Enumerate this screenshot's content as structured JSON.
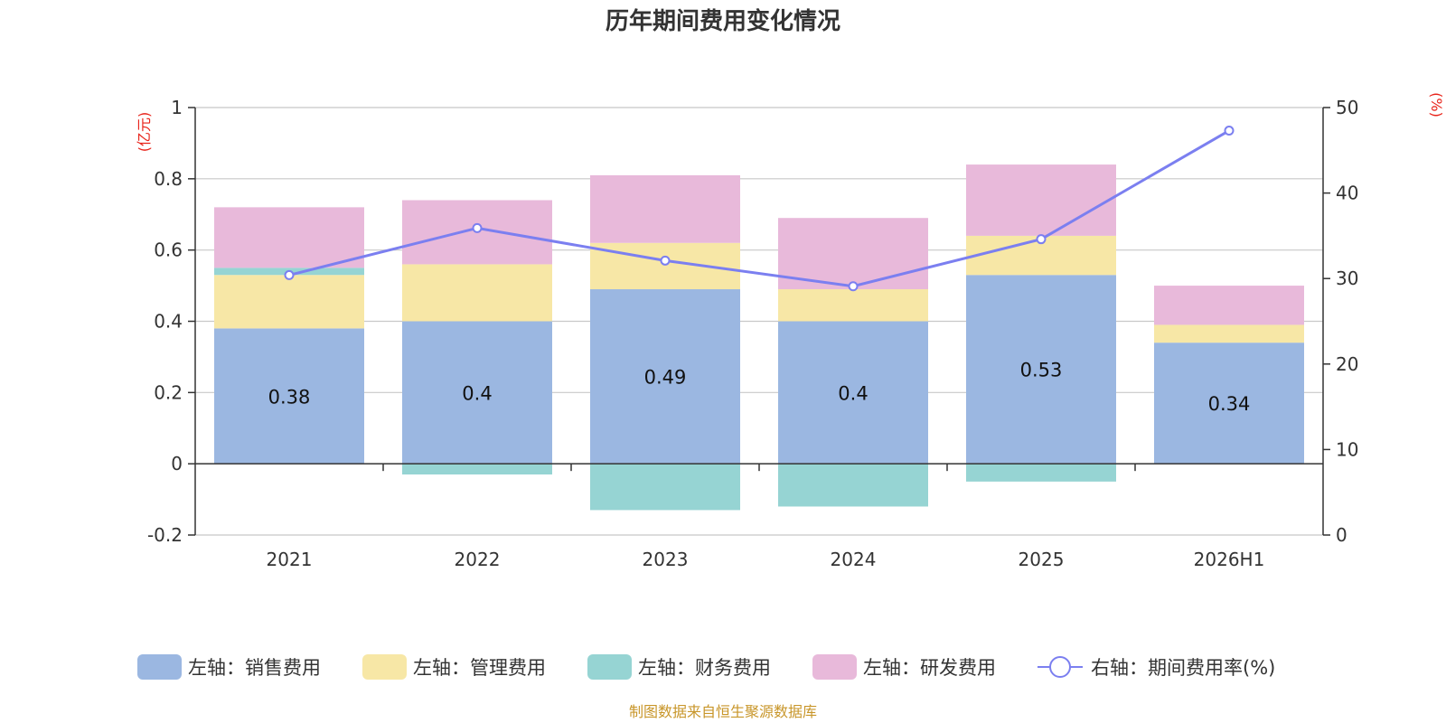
{
  "chart_data": {
    "type": "bar",
    "title": "历年期间费用变化情况",
    "categories": [
      "2021",
      "2022",
      "2023",
      "2024",
      "2025",
      "2026H1"
    ],
    "y_left": {
      "unit_label": "(亿元)",
      "range": [
        -0.2,
        1
      ],
      "ticks": [
        -0.2,
        0,
        0.2,
        0.4,
        0.6,
        0.8,
        1
      ],
      "tick_labels": [
        "-0.2",
        "0",
        "0.2",
        "0.4",
        "0.6",
        "0.8",
        "1"
      ]
    },
    "y_right": {
      "unit_label": "(%)",
      "range": [
        0,
        50
      ],
      "ticks": [
        0,
        10,
        20,
        30,
        40,
        50
      ],
      "tick_labels": [
        "0",
        "10",
        "20",
        "30",
        "40",
        "50"
      ]
    },
    "grid": true,
    "legend_position": "bottom",
    "series": [
      {
        "name": "左轴：销售费用",
        "type": "bar",
        "axis": "left",
        "color": "#9bb7e1",
        "values": [
          0.38,
          0.4,
          0.49,
          0.4,
          0.53,
          0.34
        ],
        "data_labels": [
          "0.38",
          "0.4",
          "0.49",
          "0.4",
          "0.53",
          "0.34"
        ]
      },
      {
        "name": "左轴：管理费用",
        "type": "bar",
        "axis": "left",
        "color": "#f7e7a6",
        "values": [
          0.15,
          0.16,
          0.13,
          0.09,
          0.11,
          0.05
        ]
      },
      {
        "name": "左轴：财务费用",
        "type": "bar",
        "axis": "left",
        "color": "#96d4d3",
        "values": [
          0.02,
          -0.03,
          -0.13,
          -0.12,
          -0.05,
          0.0
        ]
      },
      {
        "name": "左轴：研发费用",
        "type": "bar",
        "axis": "left",
        "color": "#e8b9da",
        "values": [
          0.17,
          0.18,
          0.19,
          0.2,
          0.2,
          0.11
        ]
      },
      {
        "name": "右轴：期间费用率(%)",
        "type": "line",
        "axis": "right",
        "color": "#7b7ff0",
        "values": [
          30.4,
          35.9,
          32.1,
          29.1,
          34.6,
          47.3
        ]
      }
    ]
  },
  "source_note": "制图数据来自恒生聚源数据库"
}
